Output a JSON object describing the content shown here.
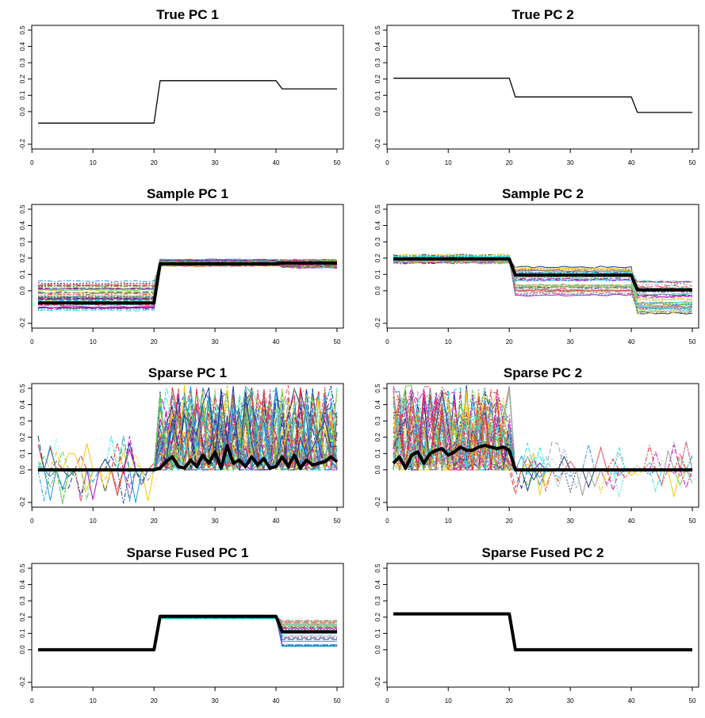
{
  "chart_data": [
    {
      "type": "line",
      "title": "True PC 1",
      "xlim": [
        1,
        50
      ],
      "ylim": [
        -0.2,
        0.5
      ],
      "xticks": [
        0,
        10,
        20,
        30,
        40,
        50
      ],
      "yticks": [
        "-0.2",
        "0.0",
        "0.1",
        "0.2",
        "0.3",
        "0.4",
        "0.5"
      ],
      "main": {
        "segments": [
          [
            1,
            20,
            -0.07
          ],
          [
            21,
            40,
            0.19
          ],
          [
            41,
            50,
            0.14
          ]
        ],
        "width": 1.3
      },
      "noise": null
    },
    {
      "type": "line",
      "title": "True PC 2",
      "xlim": [
        1,
        50
      ],
      "ylim": [
        -0.2,
        0.5
      ],
      "xticks": [
        0,
        10,
        20,
        30,
        40,
        50
      ],
      "yticks": [
        "-0.2",
        "0.0",
        "0.1",
        "0.2",
        "0.3",
        "0.4",
        "0.5"
      ],
      "main": {
        "segments": [
          [
            1,
            20,
            0.205
          ],
          [
            21,
            40,
            0.09
          ],
          [
            41,
            50,
            -0.005
          ]
        ],
        "width": 1.3
      },
      "noise": null
    },
    {
      "type": "line",
      "title": "Sample PC 1",
      "xlim": [
        1,
        50
      ],
      "ylim": [
        -0.2,
        0.5
      ],
      "xticks": [
        0,
        10,
        20,
        30,
        40,
        50
      ],
      "yticks": [
        "-0.2",
        "0.0",
        "0.1",
        "0.2",
        "0.3",
        "0.4",
        "0.5"
      ],
      "main": {
        "segments": [
          [
            1,
            20,
            -0.075
          ],
          [
            21,
            40,
            0.165
          ],
          [
            41,
            50,
            0.17
          ]
        ],
        "width": 4
      },
      "noise": {
        "kind": "blocks",
        "count": 50,
        "seed": 11,
        "blocks": [
          {
            "from": 1,
            "to": 20,
            "lo": -0.12,
            "hi": 0.06
          },
          {
            "from": 21,
            "to": 40,
            "lo": 0.15,
            "hi": 0.19
          },
          {
            "from": 41,
            "to": 50,
            "lo": 0.14,
            "hi": 0.19
          }
        ],
        "jitter": 0.004
      }
    },
    {
      "type": "line",
      "title": "Sample PC 2",
      "xlim": [
        1,
        50
      ],
      "ylim": [
        -0.2,
        0.5
      ],
      "xticks": [
        0,
        10,
        20,
        30,
        40,
        50
      ],
      "yticks": [
        "-0.2",
        "0.0",
        "0.1",
        "0.2",
        "0.3",
        "0.4",
        "0.5"
      ],
      "main": {
        "segments": [
          [
            1,
            20,
            0.195
          ],
          [
            21,
            40,
            0.095
          ],
          [
            41,
            50,
            0.005
          ]
        ],
        "width": 4
      },
      "noise": {
        "kind": "blocks",
        "count": 50,
        "seed": 23,
        "blocks": [
          {
            "from": 1,
            "to": 20,
            "lo": 0.17,
            "hi": 0.22
          },
          {
            "from": 21,
            "to": 40,
            "lo": -0.03,
            "hi": 0.15
          },
          {
            "from": 41,
            "to": 50,
            "lo": -0.14,
            "hi": 0.07
          }
        ],
        "jitter": 0.006
      }
    },
    {
      "type": "line",
      "title": "Sparse PC 1",
      "xlim": [
        1,
        50
      ],
      "ylim": [
        -0.2,
        0.5
      ],
      "xticks": [
        0,
        10,
        20,
        30,
        40,
        50
      ],
      "yticks": [
        "-0.2",
        "0.0",
        "0.1",
        "0.2",
        "0.3",
        "0.4",
        "0.5"
      ],
      "main": {
        "points": [
          [
            1,
            0
          ],
          [
            2,
            0
          ],
          [
            3,
            0
          ],
          [
            4,
            0
          ],
          [
            5,
            0
          ],
          [
            6,
            0
          ],
          [
            7,
            0
          ],
          [
            8,
            0
          ],
          [
            9,
            0
          ],
          [
            10,
            0
          ],
          [
            11,
            0
          ],
          [
            12,
            0
          ],
          [
            13,
            0
          ],
          [
            14,
            0
          ],
          [
            15,
            0
          ],
          [
            16,
            0
          ],
          [
            17,
            0
          ],
          [
            18,
            0
          ],
          [
            19,
            0
          ],
          [
            20,
            0
          ],
          [
            21,
            0.01
          ],
          [
            22,
            0.05
          ],
          [
            23,
            0.08
          ],
          [
            24,
            0.02
          ],
          [
            25,
            0.01
          ],
          [
            26,
            0.06
          ],
          [
            27,
            0.02
          ],
          [
            28,
            0.09
          ],
          [
            29,
            0.04
          ],
          [
            30,
            0.11
          ],
          [
            31,
            0.01
          ],
          [
            32,
            0.15
          ],
          [
            33,
            0.04
          ],
          [
            34,
            0.06
          ],
          [
            35,
            0.02
          ],
          [
            36,
            0.08
          ],
          [
            37,
            0.03
          ],
          [
            38,
            0.07
          ],
          [
            39,
            0.01
          ],
          [
            40,
            0.02
          ],
          [
            41,
            0.08
          ],
          [
            42,
            0.02
          ],
          [
            43,
            0.09
          ],
          [
            44,
            0.01
          ],
          [
            45,
            0.06
          ],
          [
            46,
            0.03
          ],
          [
            47,
            0.04
          ],
          [
            48,
            0.05
          ],
          [
            49,
            0.08
          ],
          [
            50,
            0.05
          ]
        ],
        "width": 4
      },
      "noise": {
        "kind": "sparse",
        "count": 50,
        "seed": 37,
        "active": [
          21,
          50
        ],
        "zeroBefore": 20,
        "hi": 0.52,
        "inactiveSpike": 0.06
      }
    },
    {
      "type": "line",
      "title": "Sparse PC 2",
      "xlim": [
        1,
        50
      ],
      "ylim": [
        -0.2,
        0.5
      ],
      "xticks": [
        0,
        10,
        20,
        30,
        40,
        50
      ],
      "yticks": [
        "-0.2",
        "0.0",
        "0.1",
        "0.2",
        "0.3",
        "0.4",
        "0.5"
      ],
      "main": {
        "points": [
          [
            1,
            0.04
          ],
          [
            2,
            0.08
          ],
          [
            3,
            0.01
          ],
          [
            4,
            0.09
          ],
          [
            5,
            0.11
          ],
          [
            6,
            0.04
          ],
          [
            7,
            0.1
          ],
          [
            8,
            0.12
          ],
          [
            9,
            0.13
          ],
          [
            10,
            0.09
          ],
          [
            11,
            0.11
          ],
          [
            12,
            0.14
          ],
          [
            13,
            0.12
          ],
          [
            14,
            0.12
          ],
          [
            15,
            0.14
          ],
          [
            16,
            0.15
          ],
          [
            17,
            0.14
          ],
          [
            18,
            0.13
          ],
          [
            19,
            0.14
          ],
          [
            20,
            0.12
          ],
          [
            21,
            0.0
          ],
          [
            22,
            0
          ],
          [
            23,
            0
          ],
          [
            24,
            0
          ],
          [
            25,
            0
          ],
          [
            26,
            0
          ],
          [
            27,
            0
          ],
          [
            28,
            0
          ],
          [
            29,
            0
          ],
          [
            30,
            0
          ],
          [
            31,
            0
          ],
          [
            32,
            0
          ],
          [
            33,
            0
          ],
          [
            34,
            0
          ],
          [
            35,
            0
          ],
          [
            36,
            0
          ],
          [
            37,
            0
          ],
          [
            38,
            0
          ],
          [
            39,
            0
          ],
          [
            40,
            0
          ],
          [
            41,
            0
          ],
          [
            42,
            0
          ],
          [
            43,
            0
          ],
          [
            44,
            0
          ],
          [
            45,
            0
          ],
          [
            46,
            0
          ],
          [
            47,
            0
          ],
          [
            48,
            0
          ],
          [
            49,
            0
          ],
          [
            50,
            0
          ]
        ],
        "width": 4
      },
      "noise": {
        "kind": "sparse",
        "count": 50,
        "seed": 53,
        "active": [
          1,
          20
        ],
        "zeroBefore": 0,
        "hi": 0.52,
        "inactiveSpike": 0.05
      }
    },
    {
      "type": "line",
      "title": "Sparse Fused PC 1",
      "xlim": [
        1,
        50
      ],
      "ylim": [
        -0.2,
        0.5
      ],
      "xticks": [
        0,
        10,
        20,
        30,
        40,
        50
      ],
      "yticks": [
        "-0.2",
        "0.0",
        "0.1",
        "0.2",
        "0.3",
        "0.4",
        "0.5"
      ],
      "main": {
        "segments": [
          [
            1,
            20,
            0.0
          ],
          [
            21,
            40,
            0.205
          ],
          [
            41,
            50,
            0.11
          ]
        ],
        "width": 4
      },
      "noise": {
        "kind": "blocks",
        "count": 40,
        "seed": 71,
        "blocks": [
          {
            "from": 1,
            "to": 20,
            "lo": 0.0,
            "hi": 0.0
          },
          {
            "from": 21,
            "to": 40,
            "lo": 0.19,
            "hi": 0.215
          },
          {
            "from": 41,
            "to": 50,
            "lo": 0.015,
            "hi": 0.18
          }
        ],
        "jitter": 0.0
      }
    },
    {
      "type": "line",
      "title": "Sparse Fused PC 2",
      "xlim": [
        1,
        50
      ],
      "ylim": [
        -0.2,
        0.5
      ],
      "xticks": [
        0,
        10,
        20,
        30,
        40,
        50
      ],
      "yticks": [
        "-0.2",
        "0.0",
        "0.1",
        "0.2",
        "0.3",
        "0.4",
        "0.5"
      ],
      "main": {
        "segments": [
          [
            1,
            20,
            0.22
          ],
          [
            21,
            40,
            0.0
          ],
          [
            41,
            50,
            0.0
          ]
        ],
        "width": 4
      },
      "noise": null
    }
  ],
  "palette": [
    "#000000",
    "#df536b",
    "#61d04f",
    "#2297e6",
    "#28e2e5",
    "#cd0bbc",
    "#f5c710",
    "#9e9e9e",
    "#1b3a8c",
    "#e03030"
  ]
}
